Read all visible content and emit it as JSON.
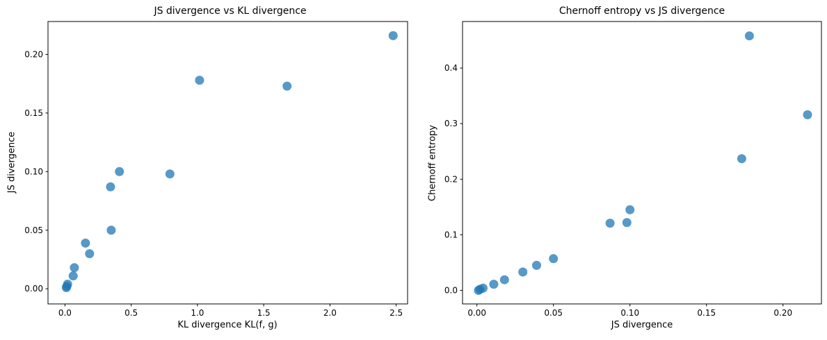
{
  "style": {
    "background": "#ffffff",
    "spine_color": "#000000",
    "tick_color": "#000000",
    "text_color": "#000000",
    "tick_label_size": 12,
    "marker_color": "#1f77b4"
  },
  "chart_data": [
    {
      "type": "scatter",
      "title": "JS divergence vs KL divergence",
      "xlabel": "KL divergence KL(f, g)",
      "ylabel": "JS divergence",
      "x": [
        0.01,
        0.014,
        0.02,
        0.062,
        0.071,
        0.155,
        0.186,
        0.349,
        0.344,
        0.411,
        0.792,
        1.016,
        1.676,
        2.477
      ],
      "y": [
        0.001,
        0.002,
        0.004,
        0.011,
        0.018,
        0.039,
        0.03,
        0.05,
        0.087,
        0.1,
        0.098,
        0.178,
        0.173,
        0.216
      ],
      "xlim": [
        -0.128,
        2.586
      ],
      "ylim": [
        -0.0129,
        0.2281
      ],
      "xticks": {
        "values": [
          0.0,
          0.5,
          1.0,
          1.5,
          2.0,
          2.5
        ],
        "labels": [
          "0.0",
          "0.5",
          "1.0",
          "1.5",
          "2.0",
          "2.5"
        ]
      },
      "yticks": {
        "values": [
          0.0,
          0.05,
          0.1,
          0.15,
          0.2
        ],
        "labels": [
          "0.00",
          "0.05",
          "0.10",
          "0.15",
          "0.20"
        ]
      },
      "marker": {
        "shape": "circle",
        "radius": 6.5,
        "color": "#1f77b4",
        "opacity": 0.75
      },
      "grid": false,
      "legend": null
    },
    {
      "type": "scatter",
      "title": "Chernoff entropy vs JS divergence",
      "xlabel": "JS divergence",
      "ylabel": "Chernoff entropy",
      "x": [
        0.001,
        0.002,
        0.004,
        0.011,
        0.018,
        0.03,
        0.039,
        0.05,
        0.087,
        0.098,
        0.1,
        0.173,
        0.178,
        0.216
      ],
      "y": [
        0.0,
        0.002,
        0.004,
        0.011,
        0.019,
        0.033,
        0.045,
        0.057,
        0.121,
        0.122,
        0.145,
        0.237,
        0.458,
        0.316
      ],
      "xlim": [
        -0.0094,
        0.2251
      ],
      "ylim": [
        -0.0244,
        0.4838
      ],
      "xticks": {
        "values": [
          0.0,
          0.05,
          0.1,
          0.15,
          0.2
        ],
        "labels": [
          "0.00",
          "0.05",
          "0.10",
          "0.15",
          "0.20"
        ]
      },
      "yticks": {
        "values": [
          0.0,
          0.1,
          0.2,
          0.3,
          0.4
        ],
        "labels": [
          "0.0",
          "0.1",
          "0.2",
          "0.3",
          "0.4"
        ]
      },
      "marker": {
        "shape": "circle",
        "radius": 6.5,
        "color": "#1f77b4",
        "opacity": 0.75
      },
      "grid": false,
      "legend": null
    }
  ]
}
